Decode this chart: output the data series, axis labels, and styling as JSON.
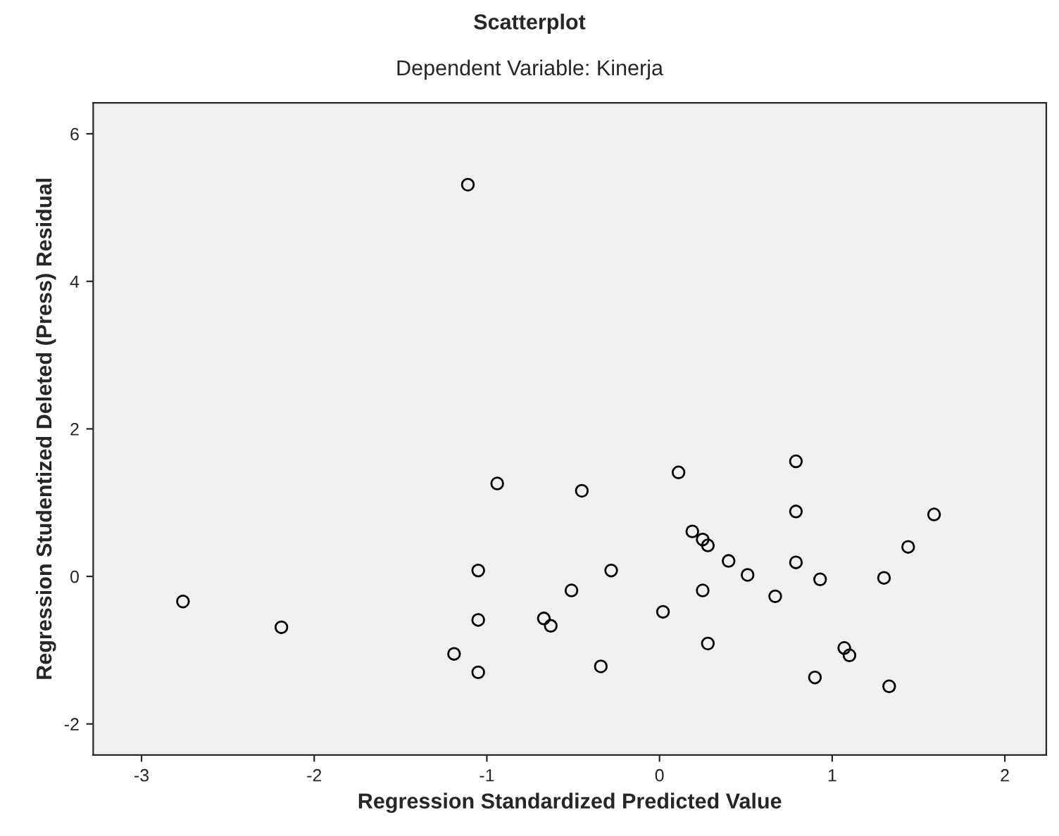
{
  "chart_data": {
    "type": "scatter",
    "title": "Scatterplot",
    "subtitle": "Dependent Variable: Kinerja",
    "xlabel": "Regression Standardized Predicted Value",
    "ylabel": "Regression Studentized Deleted (Press) Residual",
    "x": [
      -2.76,
      -2.19,
      -1.11,
      -0.94,
      -1.05,
      -1.05,
      -1.05,
      -1.19,
      -0.67,
      -0.63,
      -0.51,
      -0.45,
      -0.28,
      -0.34,
      0.02,
      0.11,
      0.19,
      0.25,
      0.28,
      0.25,
      0.28,
      0.4,
      0.51,
      0.67,
      0.79,
      0.79,
      0.79,
      0.9,
      0.93,
      1.07,
      1.1,
      1.33,
      1.3,
      1.44,
      1.59
    ],
    "series": [
      {
        "color": "#000000",
        "values": [
          -0.34,
          -0.69,
          5.31,
          1.26,
          0.08,
          -0.59,
          -1.3,
          -1.05,
          -0.57,
          -0.67,
          -0.19,
          1.16,
          0.08,
          -1.22,
          -0.48,
          1.41,
          0.61,
          0.5,
          0.42,
          -0.19,
          -0.91,
          0.21,
          0.02,
          -0.27,
          1.56,
          0.88,
          0.19,
          -1.37,
          -0.04,
          -0.97,
          -1.07,
          -1.49,
          -0.02,
          0.4,
          0.84
        ]
      }
    ],
    "xlim": [
      -3.28,
      2.24
    ],
    "ylim": [
      -2.42,
      6.42
    ],
    "xticks": [
      -3,
      -2,
      -1,
      0,
      1,
      2
    ],
    "yticks": [
      -2,
      0,
      2,
      4,
      6
    ],
    "marker": "circle",
    "grid": false
  }
}
